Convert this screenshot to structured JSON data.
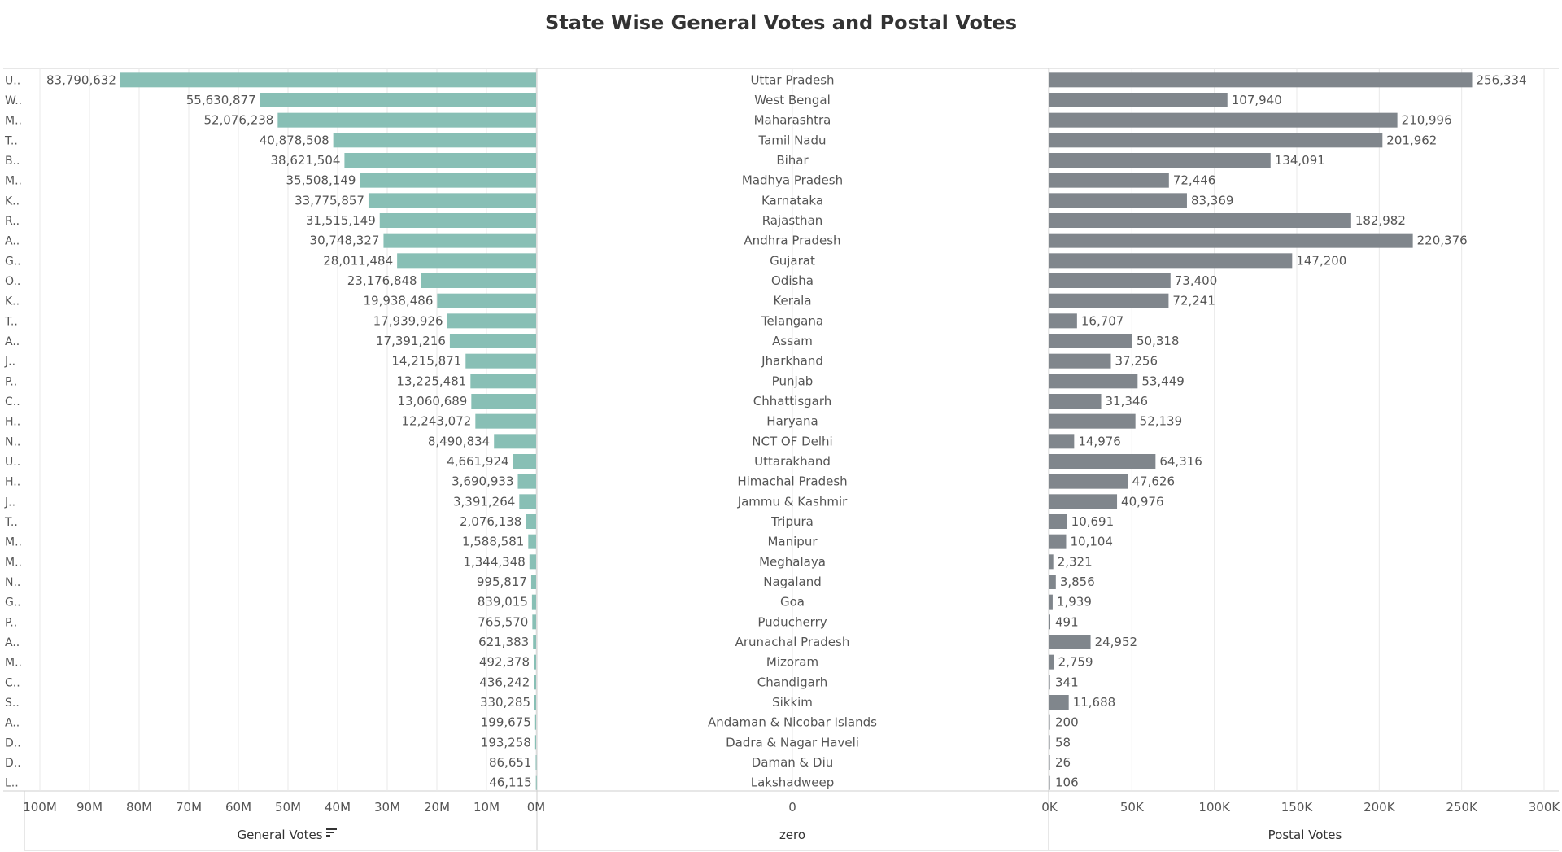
{
  "title": "State Wise General Votes and Postal Votes",
  "colors": {
    "general": "#88bfb5",
    "postal": "#80868c",
    "text": "#555555",
    "grid": "#e8e8e8",
    "border": "#cfcfcf"
  },
  "chart_data": {
    "type": "bar",
    "title": "State Wise General Votes and Postal Votes",
    "categories": [
      "Uttar Pradesh",
      "West Bengal",
      "Maharashtra",
      "Tamil Nadu",
      "Bihar",
      "Madhya Pradesh",
      "Karnataka",
      "Rajasthan",
      "Andhra Pradesh",
      "Gujarat",
      "Odisha",
      "Kerala",
      "Telangana",
      "Assam",
      "Jharkhand",
      "Punjab",
      "Chhattisgarh",
      "Haryana",
      "NCT OF Delhi",
      "Uttarakhand",
      "Himachal Pradesh",
      "Jammu & Kashmir",
      "Tripura",
      "Manipur",
      "Meghalaya",
      "Nagaland",
      "Goa",
      "Puducherry",
      "Arunachal Pradesh",
      "Mizoram",
      "Chandigarh",
      "Sikkim",
      "Andaman & Nicobar Islands",
      "Dadra & Nagar Haveli",
      "Daman & Diu",
      "Lakshadweep"
    ],
    "truncated_labels": [
      "U..",
      "W..",
      "M..",
      "T..",
      "B..",
      "M..",
      "K..",
      "R..",
      "A..",
      "G..",
      "O..",
      "K..",
      "T..",
      "A..",
      "J..",
      "P..",
      "C..",
      "H..",
      "N..",
      "U..",
      "H..",
      "J..",
      "T..",
      "M..",
      "M..",
      "N..",
      "G..",
      "P..",
      "A..",
      "M..",
      "C..",
      "S..",
      "A..",
      "D..",
      "D..",
      "L.."
    ],
    "series": [
      {
        "name": "General Votes",
        "values": [
          83790632,
          55630877,
          52076238,
          40878508,
          38621504,
          35508149,
          33775857,
          31515149,
          30748327,
          28011484,
          23176848,
          19938486,
          17939926,
          17391216,
          14215871,
          13225481,
          13060689,
          12243072,
          8490834,
          4661924,
          3690933,
          3391264,
          2076138,
          1588581,
          1344348,
          995817,
          839015,
          765570,
          621383,
          492378,
          436242,
          330285,
          199675,
          193258,
          86651,
          46115
        ],
        "labels": [
          "83,790,632",
          "55,630,877",
          "52,076,238",
          "40,878,508",
          "38,621,504",
          "35,508,149",
          "33,775,857",
          "31,515,149",
          "30,748,327",
          "28,011,484",
          "23,176,848",
          "19,938,486",
          "17,939,926",
          "17,391,216",
          "14,215,871",
          "13,225,481",
          "13,060,689",
          "12,243,072",
          "8,490,834",
          "4,661,924",
          "3,690,933",
          "3,391,264",
          "2,076,138",
          "1,588,581",
          "1,344,348",
          "995,817",
          "839,015",
          "765,570",
          "621,383",
          "492,378",
          "436,242",
          "330,285",
          "199,675",
          "193,258",
          "86,651",
          "46,115"
        ]
      },
      {
        "name": "Postal Votes",
        "values": [
          256334,
          107940,
          210996,
          201962,
          134091,
          72446,
          83369,
          182982,
          220376,
          147200,
          73400,
          72241,
          16707,
          50318,
          37256,
          53449,
          31346,
          52139,
          14976,
          64316,
          47626,
          40976,
          10691,
          10104,
          2321,
          3856,
          1939,
          491,
          24952,
          2759,
          341,
          11688,
          200,
          58,
          26,
          106
        ],
        "labels": [
          "256,334",
          "107,940",
          "210,996",
          "201,962",
          "134,091",
          "72,446",
          "83,369",
          "182,982",
          "220,376",
          "147,200",
          "73,400",
          "72,241",
          "16,707",
          "50,318",
          "37,256",
          "53,449",
          "31,346",
          "52,139",
          "14,976",
          "64,316",
          "47,626",
          "40,976",
          "10,691",
          "10,104",
          "2,321",
          "3,856",
          "1,939",
          "491",
          "24,952",
          "2,759",
          "341",
          "11,688",
          "200",
          "58",
          "26",
          "106"
        ]
      }
    ],
    "axes": {
      "general": {
        "label": "General Votes",
        "ticks": [
          "100M",
          "90M",
          "80M",
          "70M",
          "60M",
          "50M",
          "40M",
          "30M",
          "20M",
          "10M",
          "0M"
        ],
        "tick_values": [
          100000000,
          90000000,
          80000000,
          70000000,
          60000000,
          50000000,
          40000000,
          30000000,
          20000000,
          10000000,
          0
        ],
        "range": [
          0,
          100000000
        ],
        "reversed": true,
        "sort_icon": true
      },
      "middle": {
        "label": "zero",
        "ticks": [
          "0"
        ]
      },
      "postal": {
        "label": "Postal Votes",
        "ticks": [
          "0K",
          "50K",
          "100K",
          "150K",
          "200K",
          "250K",
          "300K"
        ],
        "tick_values": [
          0,
          50000,
          100000,
          150000,
          200000,
          250000,
          300000
        ],
        "range": [
          0,
          300000
        ]
      }
    },
    "grid": true
  }
}
